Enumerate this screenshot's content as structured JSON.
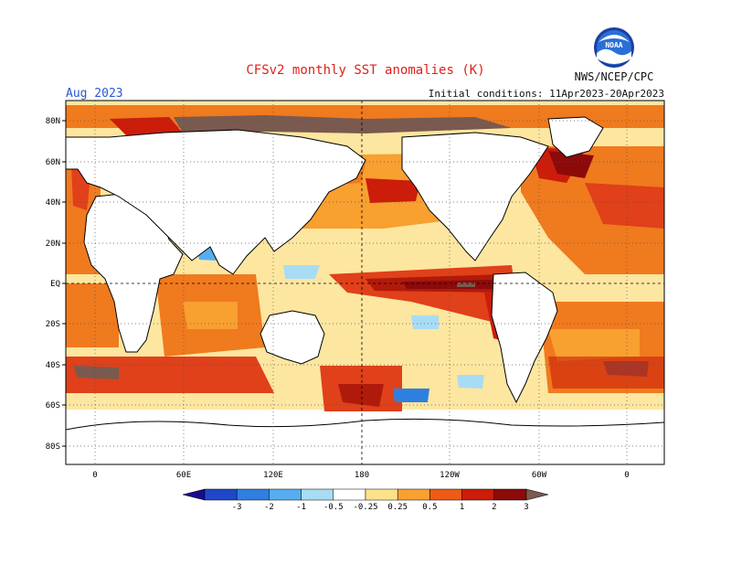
{
  "title": "CFSv2 monthly SST anomalies (K)",
  "period_label": "Aug 2023",
  "initial_conditions": "Initial conditions: 11Apr2023-20Apr2023",
  "agency": "NWS/NCEP/CPC",
  "logo_text": "NOAA",
  "map": {
    "lon_ticks": [
      "0",
      "60E",
      "120E",
      "180",
      "120W",
      "60W",
      "0"
    ],
    "lat_ticks": [
      "80N",
      "60N",
      "40N",
      "20N",
      "EQ",
      "20S",
      "40S",
      "60S",
      "80S"
    ]
  },
  "colorbar": {
    "labels": [
      "-3",
      "-2",
      "-1",
      "-0.5",
      "-0.25",
      "0.25",
      "0.5",
      "1",
      "2",
      "3"
    ],
    "colors": [
      "#1a0c8c",
      "#1f48c8",
      "#2f7fe0",
      "#56aef0",
      "#a8dcf5",
      "#ffffff",
      "#fde28c",
      "#f8a030",
      "#ef5a14",
      "#cc1c0a",
      "#8c0a0a",
      "#7a5a4e"
    ]
  },
  "colors": {
    "land": "#ffffff",
    "ocean_base": "#fde6a0",
    "warm": "#f07a1e",
    "hot": "#e0401a",
    "very_hot": "#b01a0a",
    "extreme": "#7a5a4e",
    "cool": "#56aef0",
    "cold": "#2f7fe0",
    "ice": "#ffffff"
  }
}
